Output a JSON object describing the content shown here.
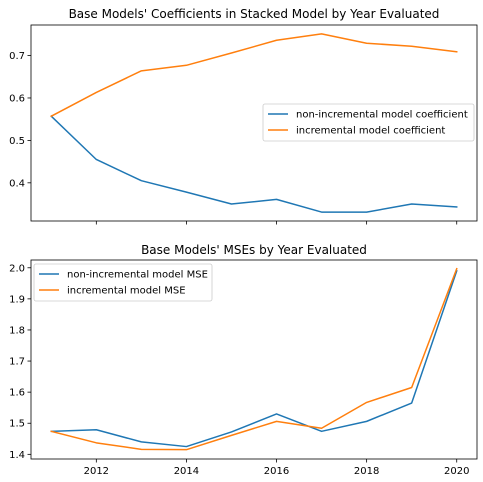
{
  "chart_data": [
    {
      "type": "line",
      "title": "Base Models' Coefficients in Stacked Model by Year Evaluated",
      "xlabel": "",
      "ylabel": "",
      "x": [
        2011,
        2012,
        2013,
        2014,
        2015,
        2016,
        2017,
        2018,
        2019,
        2020
      ],
      "xlim": [
        2010.55,
        2020.45
      ],
      "ylim": [
        0.31,
        0.772
      ],
      "xticks": [
        2012,
        2014,
        2016,
        2018,
        2020
      ],
      "xtick_labels_shown": false,
      "yticks": [
        0.4,
        0.5,
        0.6,
        0.7
      ],
      "ytick_labels": [
        "0.4",
        "0.5",
        "0.6",
        "0.7"
      ],
      "legend_position": "center-right",
      "grid": false,
      "series": [
        {
          "name": "non-incremental model coefficient",
          "color": "#1f77b4",
          "values": [
            0.557,
            0.455,
            0.405,
            0.378,
            0.35,
            0.361,
            0.331,
            0.331,
            0.35,
            0.343
          ]
        },
        {
          "name": "incremental model coefficient",
          "color": "#ff7f0e",
          "values": [
            0.557,
            0.613,
            0.664,
            0.677,
            0.706,
            0.736,
            0.751,
            0.729,
            0.722,
            0.709
          ]
        }
      ]
    },
    {
      "type": "line",
      "title": "Base Models' MSEs by Year Evaluated",
      "xlabel": "",
      "ylabel": "",
      "x": [
        2011,
        2012,
        2013,
        2014,
        2015,
        2016,
        2017,
        2018,
        2019,
        2020
      ],
      "xlim": [
        2010.55,
        2020.45
      ],
      "ylim": [
        1.385,
        2.025
      ],
      "xticks": [
        2012,
        2014,
        2016,
        2018,
        2020
      ],
      "xtick_labels": [
        "2012",
        "2014",
        "2016",
        "2018",
        "2020"
      ],
      "xtick_labels_shown": true,
      "yticks": [
        1.4,
        1.5,
        1.6,
        1.7,
        1.8,
        1.9,
        2.0
      ],
      "ytick_labels": [
        "1.4",
        "1.5",
        "1.6",
        "1.7",
        "1.8",
        "1.9",
        "2.0"
      ],
      "legend_position": "upper-left",
      "grid": false,
      "series": [
        {
          "name": "non-incremental model MSE",
          "color": "#1f77b4",
          "values": [
            1.474,
            1.479,
            1.44,
            1.425,
            1.472,
            1.53,
            1.474,
            1.506,
            1.565,
            1.99
          ]
        },
        {
          "name": "incremental model MSE",
          "color": "#ff7f0e",
          "values": [
            1.474,
            1.437,
            1.416,
            1.415,
            1.461,
            1.506,
            1.484,
            1.567,
            1.615,
            1.997
          ]
        }
      ]
    }
  ]
}
